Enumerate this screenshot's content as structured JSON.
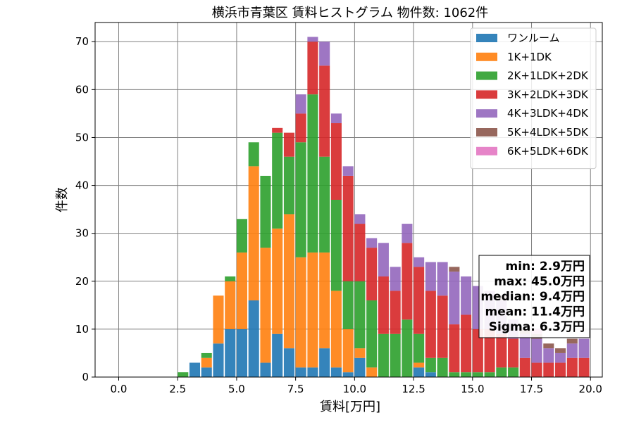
{
  "chart_data": {
    "type": "bar",
    "stacked": true,
    "title": "横浜市青葉区 賃料ヒストグラム 物件数: 1062件",
    "xlabel": "賃料[万円]",
    "ylabel": "件数",
    "xlim": [
      -1.0,
      20.5
    ],
    "ylim": [
      0,
      74
    ],
    "xticks": [
      "0.0",
      "2.5",
      "5.0",
      "7.5",
      "10.0",
      "12.5",
      "15.0",
      "17.5",
      "20.0"
    ],
    "yticks": [
      "0",
      "10",
      "20",
      "30",
      "40",
      "50",
      "60",
      "70"
    ],
    "grid": true,
    "legend_position": "top-right",
    "bin_width": 0.5,
    "x": [
      2.0,
      2.5,
      3.0,
      3.5,
      4.0,
      4.5,
      5.0,
      5.5,
      6.0,
      6.5,
      7.0,
      7.5,
      8.0,
      8.5,
      9.0,
      9.5,
      10.0,
      10.5,
      11.0,
      11.5,
      12.0,
      12.5,
      13.0,
      13.5,
      14.0,
      14.5,
      15.0,
      15.5,
      16.0,
      16.5,
      17.0,
      17.5,
      18.0,
      18.5,
      19.0,
      19.5
    ],
    "series": [
      {
        "name": "ワンルーム",
        "color": "#1f77b4",
        "values": [
          0,
          0,
          3,
          2,
          7,
          10,
          10,
          16,
          3,
          9,
          6,
          2,
          2,
          6,
          2,
          1,
          4,
          0,
          0,
          0,
          0,
          2,
          1,
          0,
          0,
          0,
          0,
          0,
          0,
          0,
          0,
          0,
          0,
          0,
          0,
          0
        ]
      },
      {
        "name": "1K+1DK",
        "color": "#ff7f0e",
        "values": [
          0,
          0,
          0,
          2,
          10,
          10,
          16,
          28,
          24,
          22,
          28,
          23,
          24,
          20,
          16,
          9,
          2,
          2,
          0,
          0,
          0,
          1,
          0,
          0,
          0,
          0,
          0,
          0,
          0,
          0,
          0,
          0,
          0,
          0,
          0,
          0
        ]
      },
      {
        "name": "2K+1LDK+2DK",
        "color": "#2ca02c",
        "values": [
          0,
          1,
          0,
          1,
          0,
          1,
          7,
          5,
          15,
          20,
          12,
          24,
          33,
          20,
          19,
          10,
          14,
          14,
          9,
          9,
          12,
          6,
          3,
          4,
          1,
          1,
          1,
          1,
          2,
          2,
          0,
          0,
          0,
          0,
          0,
          0
        ]
      },
      {
        "name": "3K+2LDK+3DK",
        "color": "#d62728",
        "values": [
          0,
          0,
          0,
          0,
          0,
          0,
          0,
          0,
          0,
          1,
          5,
          6,
          11,
          19,
          16,
          22,
          12,
          11,
          12,
          9,
          16,
          14,
          14,
          13,
          10,
          12,
          9,
          9,
          7,
          6,
          4,
          3,
          3,
          3,
          4,
          4
        ]
      },
      {
        "name": "4K+3LDK+4DK",
        "color": "#9467bd",
        "values": [
          0,
          0,
          0,
          0,
          0,
          0,
          0,
          0,
          0,
          0,
          0,
          4,
          1,
          5,
          2,
          2,
          2,
          2,
          7,
          5,
          4,
          2,
          6,
          7,
          11,
          8,
          9,
          8,
          7,
          4,
          5,
          5,
          3,
          2,
          3,
          4
        ]
      },
      {
        "name": "5K+4LDK+5DK",
        "color": "#8c564b",
        "values": [
          0,
          0,
          0,
          0,
          0,
          0,
          0,
          0,
          0,
          0,
          0,
          0,
          0,
          0,
          0,
          0,
          0,
          0,
          0,
          0,
          0,
          0,
          0,
          0,
          1,
          0,
          0,
          0,
          1,
          0,
          1,
          1,
          1,
          1,
          1,
          0
        ]
      },
      {
        "name": "6K+5LDK+6DK",
        "color": "#e377c2",
        "values": [
          0,
          0,
          0,
          0,
          0,
          0,
          0,
          0,
          0,
          0,
          0,
          0,
          0,
          0,
          0,
          0,
          0,
          0,
          0,
          0,
          0,
          0,
          0,
          0,
          0,
          0,
          0,
          0,
          0,
          0,
          0,
          1,
          0,
          0,
          0,
          0
        ]
      }
    ],
    "annotation": [
      "min: 2.9万円",
      "max: 45.0万円",
      "median: 9.4万円",
      "mean: 11.4万円",
      "Sigma: 6.3万円"
    ]
  }
}
